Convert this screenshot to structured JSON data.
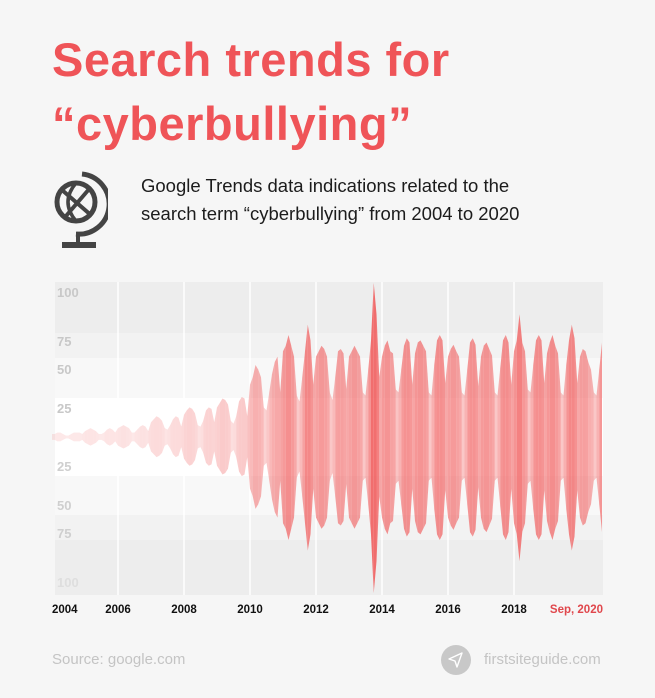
{
  "header": {
    "title_line1": "Search trends for",
    "title_line2": "“cyberbullying”",
    "subtitle_line1": "Google Trends data indications related to the",
    "subtitle_line2": "search term “cyberbullying” from 2004 to 2020",
    "icon": "globe-icon"
  },
  "colors": {
    "accent": "#ef5458",
    "series": "#f05a5a",
    "axis_text": "#c4c4c4",
    "last_tick": "#e0474c"
  },
  "chart_data": {
    "type": "area",
    "style": "mirrored-stream",
    "x_start": "2004-01",
    "x_end": "2020-09",
    "x_ticks": [
      "2004",
      "2006",
      "2008",
      "2010",
      "2012",
      "2014",
      "2016",
      "2018",
      "Sep, 2020"
    ],
    "y_ticks_top": [
      "100",
      "75",
      "50",
      "25"
    ],
    "y_ticks_bottom": [
      "25",
      "50",
      "75",
      "100"
    ],
    "ylim": [
      0,
      100
    ],
    "grid": true,
    "monthly_values": [
      2,
      2,
      3,
      3,
      2,
      1,
      1,
      2,
      3,
      3,
      3,
      2,
      4,
      5,
      6,
      5,
      4,
      2,
      2,
      3,
      5,
      6,
      5,
      3,
      6,
      7,
      8,
      7,
      6,
      3,
      3,
      5,
      7,
      8,
      7,
      4,
      10,
      12,
      14,
      13,
      11,
      6,
      5,
      8,
      12,
      14,
      13,
      7,
      15,
      18,
      20,
      19,
      16,
      8,
      7,
      11,
      18,
      20,
      19,
      10,
      20,
      23,
      26,
      25,
      22,
      11,
      9,
      14,
      24,
      27,
      26,
      14,
      35,
      40,
      48,
      45,
      40,
      20,
      18,
      30,
      42,
      50,
      55,
      30,
      60,
      65,
      75,
      65,
      55,
      28,
      24,
      40,
      60,
      80,
      70,
      35,
      55,
      60,
      65,
      62,
      55,
      30,
      25,
      40,
      60,
      62,
      58,
      32,
      55,
      60,
      65,
      60,
      55,
      30,
      28,
      45,
      70,
      100,
      85,
      40,
      55,
      65,
      70,
      60,
      58,
      32,
      30,
      45,
      65,
      72,
      68,
      35,
      58,
      68,
      70,
      65,
      60,
      30,
      28,
      48,
      70,
      75,
      70,
      36,
      55,
      62,
      66,
      60,
      55,
      30,
      28,
      45,
      68,
      72,
      66,
      34,
      55,
      65,
      68,
      62,
      56,
      30,
      28,
      46,
      70,
      75,
      68,
      35,
      60,
      70,
      85,
      68,
      60,
      32,
      30,
      48,
      70,
      75,
      70,
      36,
      58,
      68,
      75,
      65,
      58,
      30,
      28,
      48,
      70,
      80,
      72,
      36,
      55,
      62,
      60,
      50,
      45,
      30,
      28,
      45,
      68
    ]
  },
  "footer": {
    "source": "Source: google.com",
    "brand": "firstsiteguide.com",
    "brand_icon": "paper-plane-icon"
  }
}
